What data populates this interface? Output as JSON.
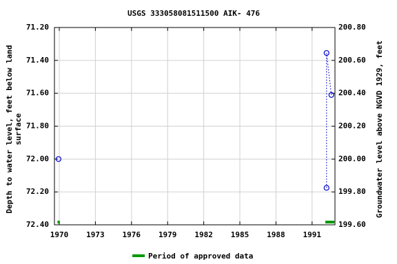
{
  "chart_data": {
    "type": "scatter",
    "title": "USGS 333058081511500 AIK- 476",
    "y_label_lines": [
      "Depth to water level, feet below land",
      "surface"
    ],
    "y2_label": "Groundwater level above NGVD 1929, feet",
    "xlim": [
      1969.6,
      1992.9
    ],
    "xticks": [
      1970,
      1973,
      1976,
      1979,
      1982,
      1985,
      1988,
      1991
    ],
    "ylim": [
      71.2,
      72.4
    ],
    "yticks": [
      {
        "value": 71.2,
        "label": "71.20"
      },
      {
        "value": 71.4,
        "label": "71.40"
      },
      {
        "value": 71.6,
        "label": "71.60"
      },
      {
        "value": 71.8,
        "label": "71.80"
      },
      {
        "value": 72.0,
        "label": "72.00"
      },
      {
        "value": 72.2,
        "label": "72.20"
      },
      {
        "value": 72.4,
        "label": "72.40"
      }
    ],
    "y2lim": [
      200.8,
      199.6
    ],
    "y2ticks": [
      {
        "value": 200.8,
        "label": "200.80"
      },
      {
        "value": 200.6,
        "label": "200.60"
      },
      {
        "value": 200.4,
        "label": "200.40"
      },
      {
        "value": 200.2,
        "label": "200.20"
      },
      {
        "value": 200.0,
        "label": "200.00"
      },
      {
        "value": 199.8,
        "label": "199.80"
      },
      {
        "value": 199.6,
        "label": "199.60"
      }
    ],
    "grid": true,
    "series": [
      {
        "color": "#0000cc",
        "x": [
          1969.94,
          null,
          1992.2,
          1992.2,
          1992.6
        ],
        "values": [
          72.0,
          null,
          72.175,
          71.355,
          71.61
        ]
      }
    ],
    "approved_periods": {
      "name": "Period of approved data",
      "color": "#009900",
      "ranges": [
        [
          1969.85,
          1970.05
        ],
        [
          1992.1,
          1992.85
        ]
      ]
    }
  }
}
